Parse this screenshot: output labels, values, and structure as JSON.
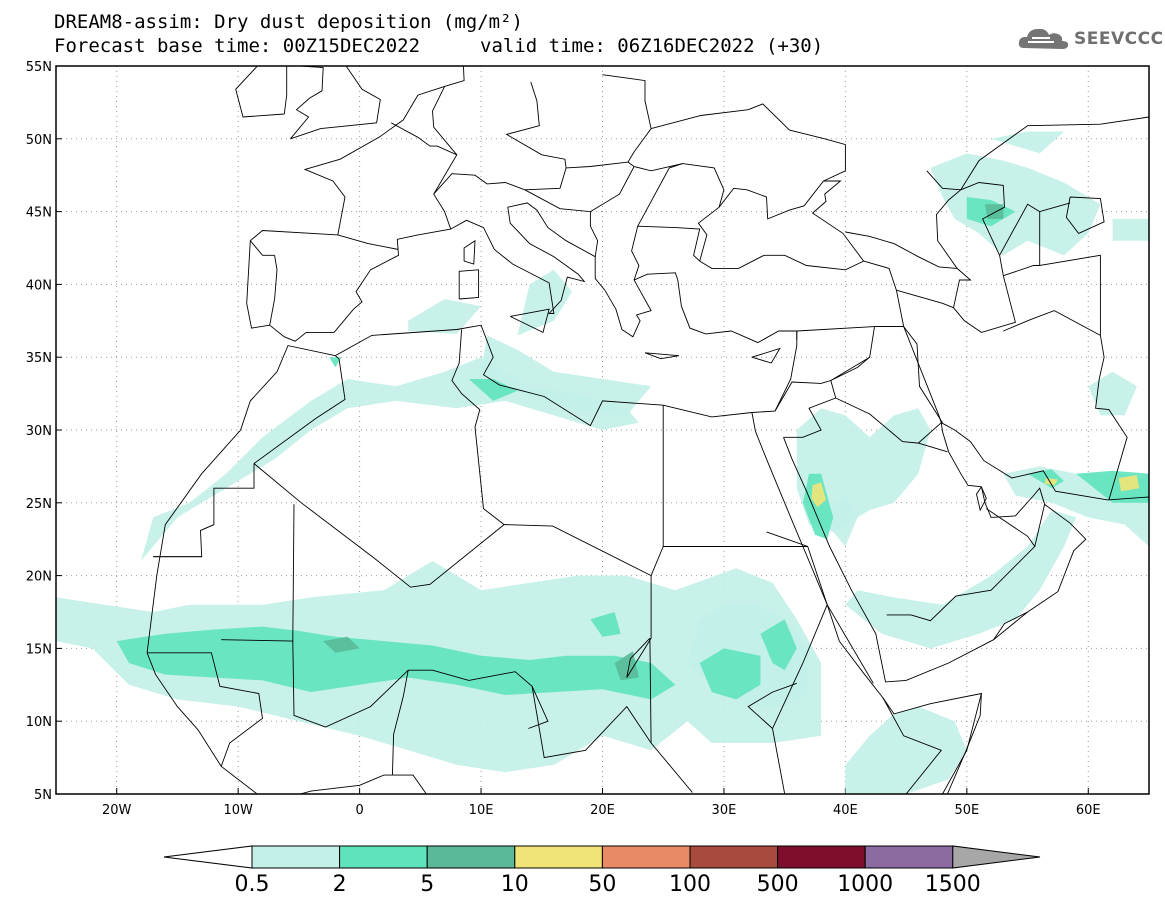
{
  "title": {
    "line1": "DREAM8-assim: Dry dust deposition (mg/m²)",
    "line2_base": "Forecast base time: 00Z15DEC2022",
    "line2_valid": "valid time: 06Z16DEC2022 (+30)"
  },
  "logo": {
    "text": "SEEVCCC",
    "icon": "cloud-logo-icon"
  },
  "map": {
    "projection": "lat-lon",
    "lon_range": [
      -25,
      65
    ],
    "lat_range": [
      5,
      55
    ],
    "grid": "dotted",
    "lat_ticks": [
      "55N",
      "50N",
      "45N",
      "40N",
      "35N",
      "30N",
      "25N",
      "20N",
      "15N",
      "10N",
      "5N"
    ],
    "lon_ticks": [
      "20W",
      "10W",
      "0",
      "10E",
      "20E",
      "30E",
      "40E",
      "50E",
      "60E"
    ],
    "coastlines": "shown",
    "country_borders": "shown"
  },
  "colorbar": {
    "labels": [
      "0.5",
      "2",
      "5",
      "10",
      "50",
      "100",
      "500",
      "1000",
      "1500"
    ],
    "colors": [
      "#c2f0e8",
      "#5fe3bc",
      "#5ab998",
      "#f1e477",
      "#e88a64",
      "#a94a3e",
      "#7d0f2c",
      "#8d6aa0",
      "#a7a7a7"
    ],
    "extend": "both"
  }
}
